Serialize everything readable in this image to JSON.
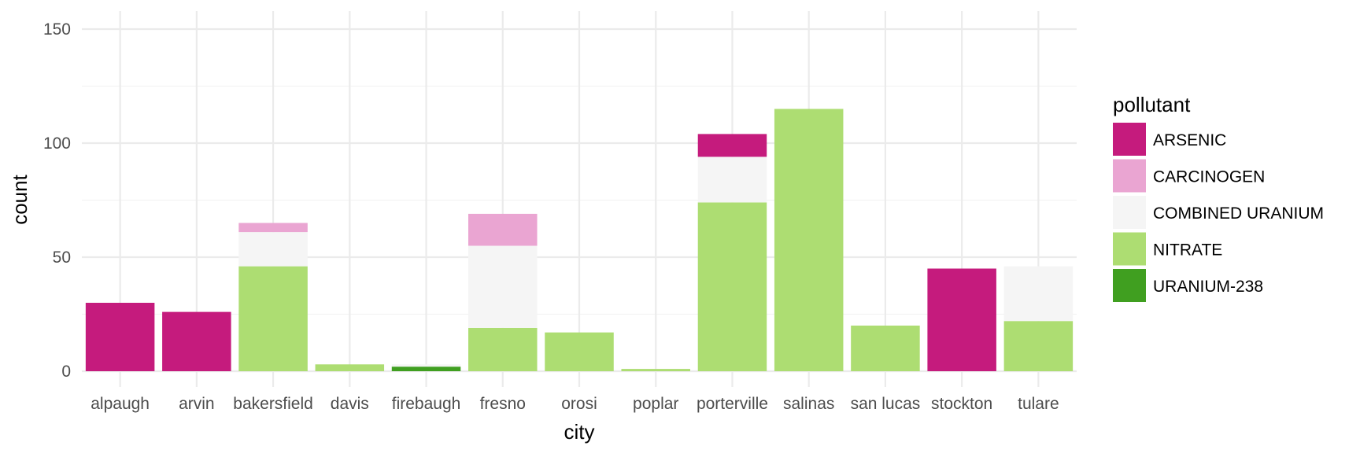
{
  "chart_data": {
    "type": "bar",
    "stacked": true,
    "xlabel": "city",
    "ylabel": "count",
    "ylim": [
      0,
      160
    ],
    "yticks": [
      0,
      50,
      100,
      150
    ],
    "grid": true,
    "legend_position": "right",
    "legend_title": "pollutant",
    "categories": [
      "alpaugh",
      "arvin",
      "bakersfield",
      "davis",
      "firebaugh",
      "fresno",
      "orosi",
      "poplar",
      "porterville",
      "salinas",
      "san lucas",
      "stockton",
      "tulare"
    ],
    "series": [
      {
        "name": "ARSENIC",
        "color": "#c51b7d",
        "values": [
          30,
          26,
          0,
          0,
          0,
          0,
          0,
          0,
          10,
          0,
          0,
          45,
          0
        ]
      },
      {
        "name": "CARCINOGEN",
        "color": "#eaa5d2",
        "values": [
          0,
          0,
          4,
          0,
          0,
          14,
          0,
          0,
          0,
          0,
          0,
          0,
          0
        ]
      },
      {
        "name": "COMBINED URANIUM",
        "color": "#f5f5f5",
        "values": [
          0,
          0,
          15,
          0,
          1,
          36,
          0,
          0,
          20,
          0,
          0,
          0,
          24
        ]
      },
      {
        "name": "NITRATE",
        "color": "#addd72",
        "values": [
          0,
          0,
          46,
          3,
          0,
          19,
          17,
          1,
          74,
          115,
          20,
          0,
          22
        ]
      },
      {
        "name": "URANIUM-238",
        "color": "#409f20",
        "values": [
          0,
          0,
          0,
          0,
          2,
          0,
          0,
          0,
          0,
          0,
          0,
          0,
          0
        ]
      }
    ]
  }
}
